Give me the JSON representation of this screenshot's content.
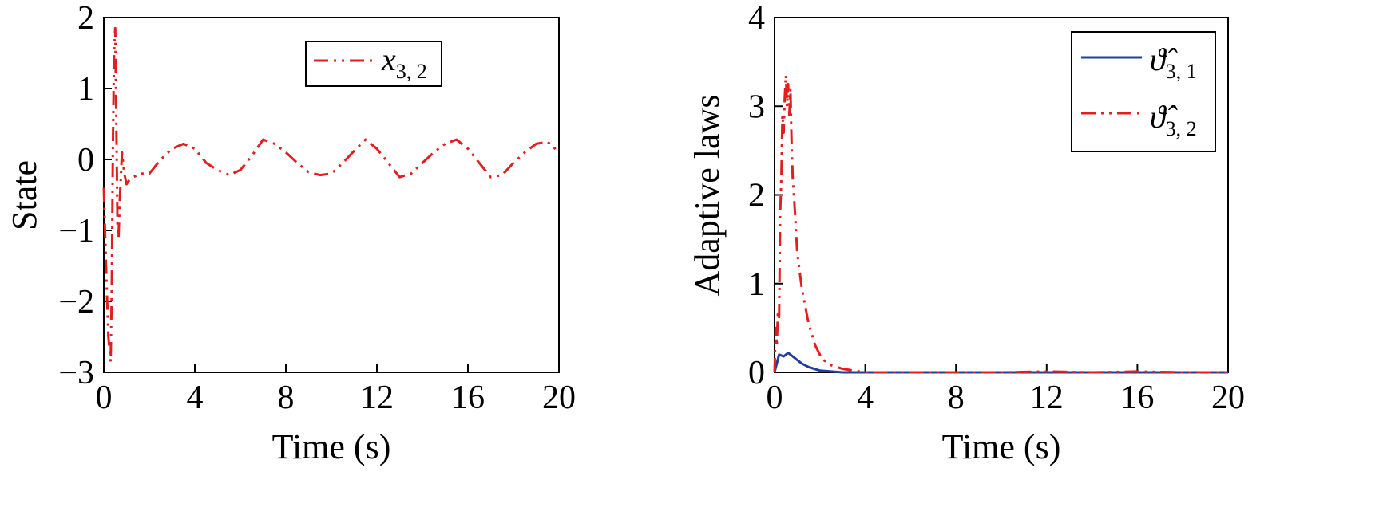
{
  "chart_data": [
    {
      "type": "line",
      "xlabel": "Time (s)",
      "ylabel": "State",
      "xlim": [
        0,
        20
      ],
      "ylim": [
        -3,
        2
      ],
      "xticks": [
        "0",
        "4",
        "8",
        "12",
        "16",
        "20"
      ],
      "yticks": [
        "−3",
        "−2",
        "−1",
        "0",
        "1",
        "2"
      ],
      "legend_position": "top-right",
      "series": [
        {
          "name": "x",
          "name_sub": "3, 2",
          "color": "#e02020",
          "style": "dash-dot",
          "x": [
            0,
            0.1,
            0.2,
            0.3,
            0.35,
            0.4,
            0.45,
            0.5,
            0.55,
            0.6,
            0.65,
            0.7,
            0.8,
            0.9,
            1.0,
            1.1,
            1.3,
            1.6,
            2.0,
            2.5,
            3.0,
            3.5,
            4.0,
            4.5,
            5.0,
            5.5,
            6.0,
            6.5,
            7.0,
            7.5,
            8.0,
            8.5,
            9.0,
            9.5,
            10.0,
            10.5,
            11.0,
            11.5,
            12.0,
            12.5,
            13.0,
            13.5,
            14.0,
            14.5,
            15.0,
            15.5,
            16.0,
            16.5,
            17.0,
            17.5,
            18.0,
            18.5,
            19.0,
            19.5,
            20.0
          ],
          "y": [
            -0.4,
            -1.5,
            -2.5,
            -2.85,
            -1.8,
            0.2,
            1.5,
            1.85,
            0.5,
            -0.9,
            -1.1,
            -0.6,
            0.1,
            -0.2,
            -0.35,
            -0.3,
            -0.25,
            -0.2,
            -0.2,
            0.0,
            0.15,
            0.22,
            0.15,
            -0.05,
            -0.15,
            -0.22,
            -0.15,
            0.05,
            0.28,
            0.22,
            0.1,
            -0.05,
            -0.18,
            -0.22,
            -0.2,
            -0.05,
            0.12,
            0.28,
            0.15,
            -0.05,
            -0.25,
            -0.2,
            -0.05,
            0.1,
            0.22,
            0.28,
            0.15,
            -0.05,
            -0.25,
            -0.22,
            -0.05,
            0.1,
            0.22,
            0.25,
            0.1
          ]
        }
      ]
    },
    {
      "type": "line",
      "xlabel": "Time (s)",
      "ylabel": "Adaptive laws",
      "xlim": [
        0,
        20
      ],
      "ylim": [
        0,
        4
      ],
      "xticks": [
        "0",
        "4",
        "8",
        "12",
        "16",
        "20"
      ],
      "yticks": [
        "0",
        "1",
        "2",
        "3",
        "4"
      ],
      "legend_position": "top-right",
      "series": [
        {
          "name": "ϑ̂",
          "name_sub": "3, 1",
          "color": "#1f3fa0",
          "style": "solid",
          "x": [
            0,
            0.1,
            0.2,
            0.3,
            0.4,
            0.5,
            0.6,
            0.7,
            0.8,
            1.0,
            1.2,
            1.5,
            2.0,
            2.5,
            3.0,
            4.0,
            8.0,
            12.0,
            16.0,
            20.0
          ],
          "y": [
            0,
            0.1,
            0.2,
            0.19,
            0.18,
            0.2,
            0.22,
            0.2,
            0.18,
            0.14,
            0.1,
            0.06,
            0.02,
            0.01,
            0.0,
            0.0,
            0.0,
            0.0,
            0.0,
            0.0
          ]
        },
        {
          "name": "ϑ̂",
          "name_sub": "3, 2",
          "color": "#e02020",
          "style": "dash-dot",
          "x": [
            0,
            0.05,
            0.1,
            0.15,
            0.2,
            0.25,
            0.3,
            0.35,
            0.4,
            0.45,
            0.5,
            0.55,
            0.6,
            0.65,
            0.7,
            0.75,
            0.8,
            0.9,
            1.0,
            1.2,
            1.5,
            1.8,
            2.1,
            2.5,
            3.0,
            3.5,
            4.0,
            6.0,
            8.0,
            10.0,
            12.0,
            14.0,
            16.0,
            18.0,
            20.0
          ],
          "y": [
            0,
            0.5,
            0.3,
            0.7,
            0.6,
            1.8,
            2.2,
            2.9,
            2.7,
            3.1,
            3.35,
            3.0,
            3.25,
            2.9,
            3.2,
            2.6,
            2.2,
            1.8,
            1.35,
            0.95,
            0.55,
            0.3,
            0.15,
            0.08,
            0.04,
            0.02,
            0.0,
            0.0,
            0.0,
            0.0,
            0.01,
            0.0,
            0.01,
            0.0,
            0.0
          ]
        }
      ]
    }
  ]
}
